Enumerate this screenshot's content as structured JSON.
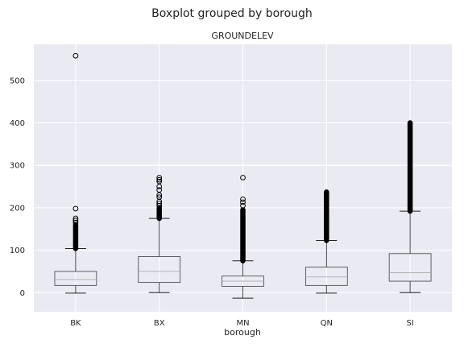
{
  "chart_data": {
    "type": "boxplot",
    "suptitle": "Boxplot grouped by borough",
    "title": "GROUNDELEV",
    "xlabel": "borough",
    "ylabel": "",
    "ylim": [
      -45,
      585
    ],
    "yticks": [
      0,
      100,
      200,
      300,
      400,
      500
    ],
    "grid": true,
    "categories": [
      "BK",
      "BX",
      "MN",
      "QN",
      "SI"
    ],
    "boxes": [
      {
        "label": "BK",
        "whisker_low": -1,
        "q1": 17,
        "median": 31,
        "q3": 50,
        "whisker_high": 104,
        "outlier_band": [
          104,
          160
        ],
        "outliers": [
          165,
          170,
          175,
          198,
          558
        ]
      },
      {
        "label": "BX",
        "whisker_low": 0,
        "q1": 24,
        "median": 50,
        "q3": 85,
        "whisker_high": 175,
        "outlier_band": [
          175,
          200
        ],
        "outliers": [
          205,
          210,
          215,
          225,
          230,
          242,
          250,
          262,
          266,
          271
        ]
      },
      {
        "label": "MN",
        "whisker_low": -13,
        "q1": 15,
        "median": 27,
        "q3": 39,
        "whisker_high": 75,
        "outlier_band": [
          75,
          195
        ],
        "outliers": [
          205,
          213,
          220,
          271
        ]
      },
      {
        "label": "QN",
        "whisker_low": -1,
        "q1": 17,
        "median": 37,
        "q3": 60,
        "whisker_high": 123,
        "outlier_band": [
          123,
          237
        ],
        "outliers": []
      },
      {
        "label": "SI",
        "whisker_low": 0,
        "q1": 27,
        "median": 47,
        "q3": 92,
        "whisker_high": 192,
        "outlier_band": [
          192,
          400
        ],
        "outliers": []
      }
    ],
    "colors": {
      "axes_bg": "#eaeaf2",
      "grid": "#ffffff",
      "box": "#3c3c3c",
      "median": "#b2b2b2",
      "whisker": "#222222",
      "flier": "#000000"
    }
  }
}
